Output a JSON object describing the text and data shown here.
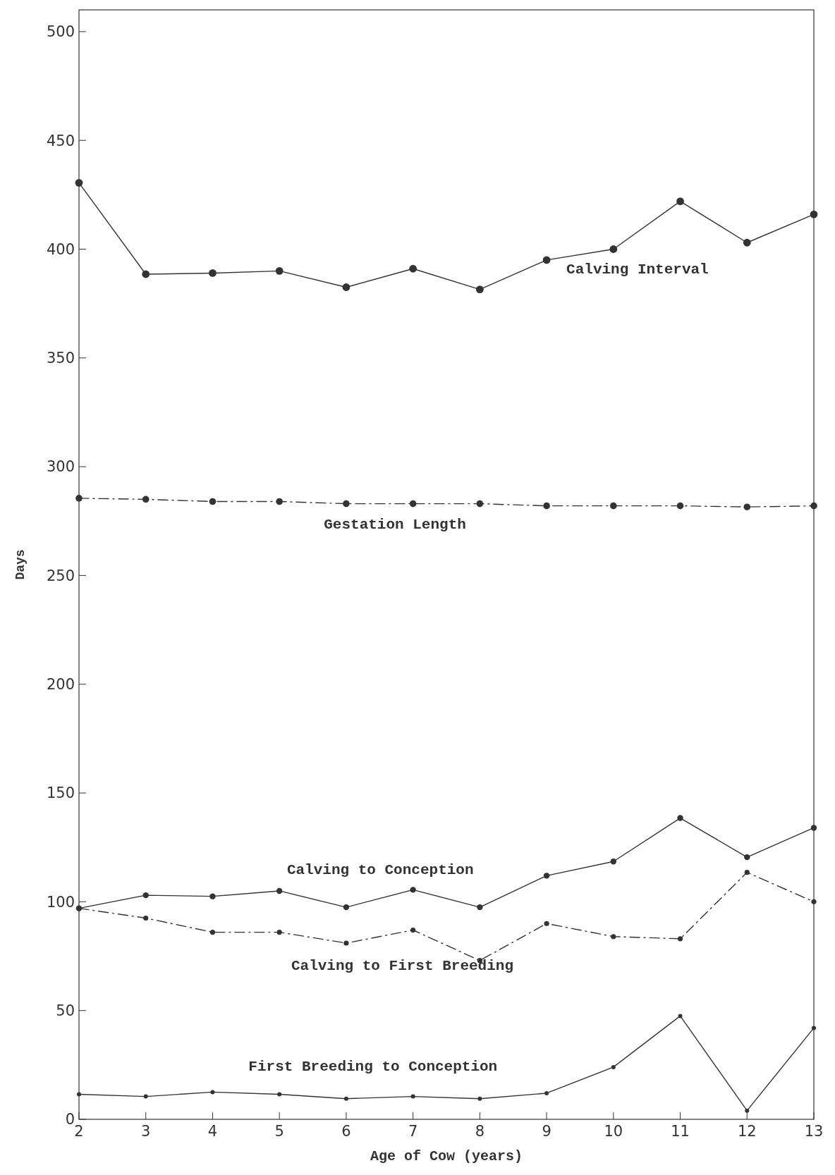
{
  "chart_data": {
    "type": "line",
    "xlabel": "Age of Cow (years)",
    "ylabel": "Days",
    "x": [
      2,
      3,
      4,
      5,
      6,
      7,
      8,
      9,
      10,
      11,
      12,
      13
    ],
    "xlim": [
      2,
      13
    ],
    "xticks": [
      2,
      3,
      4,
      5,
      6,
      7,
      8,
      9,
      10,
      11,
      12,
      13
    ],
    "ylim": [
      0,
      510
    ],
    "yticks": [
      0,
      50,
      100,
      150,
      200,
      250,
      300,
      350,
      400,
      450,
      500
    ],
    "marker": "circle",
    "series": [
      {
        "name": "Calving Interval",
        "color": "#333333",
        "line_style": "solid",
        "values": [
          430.5,
          388.5,
          389,
          390,
          382.5,
          391,
          381.5,
          395,
          400,
          422,
          403,
          416
        ]
      },
      {
        "name": "Gestation Length",
        "color": "#333333",
        "line_style": "dashed",
        "values": [
          285.5,
          285,
          284,
          284,
          283,
          283,
          283,
          282,
          282,
          282,
          281.5,
          282
        ]
      },
      {
        "name": "Calving to Conception",
        "color": "#333333",
        "line_style": "solid",
        "values": [
          97,
          103,
          102.5,
          105,
          97.5,
          105.5,
          97.5,
          112,
          118.5,
          138.5,
          120.5,
          134
        ]
      },
      {
        "name": "Calving to First Breeding",
        "color": "#333333",
        "line_style": "dashed",
        "values": [
          97,
          92.5,
          86,
          86,
          81,
          87,
          73,
          90,
          84,
          83,
          113.5,
          100
        ]
      },
      {
        "name": "First Breeding to Conception",
        "color": "#333333",
        "line_style": "solid",
        "values": [
          11.5,
          10.5,
          12.5,
          11.5,
          9.5,
          10.5,
          9.5,
          12,
          24,
          47.5,
          4,
          42
        ]
      }
    ]
  }
}
